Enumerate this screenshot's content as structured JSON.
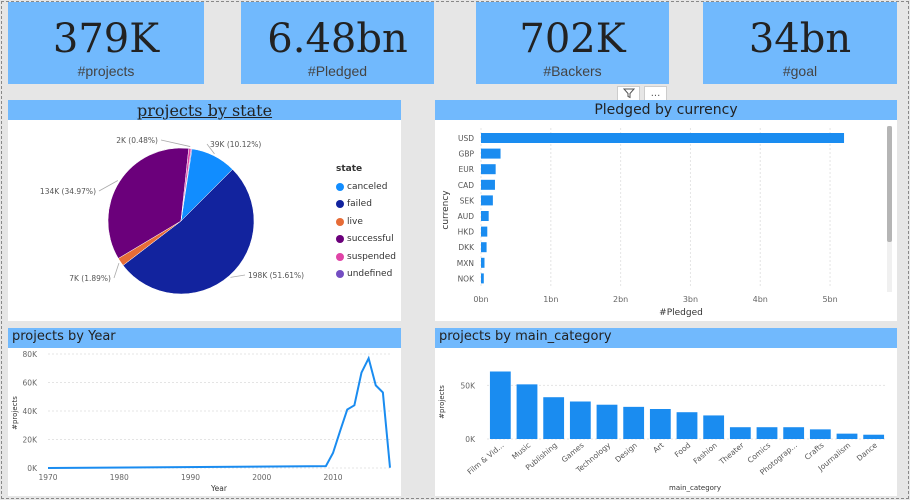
{
  "kpis": [
    {
      "value": "379K",
      "label": "#projects"
    },
    {
      "value": "6.48bn",
      "label": "#Pledged"
    },
    {
      "value": "702K",
      "label": "#Backers"
    },
    {
      "value": "34bn",
      "label": "#goal"
    }
  ],
  "toolbar": {
    "filter_icon": "filter-icon",
    "more_label": "..."
  },
  "colors": {
    "kpi_bg": "#71b9fd",
    "bar": "#1a8cf0",
    "canceled": "#118dff",
    "failed": "#12239e",
    "live": "#e66c37",
    "successful": "#6b007b",
    "suspended": "#e044a7",
    "undefined": "#744ec2"
  },
  "chart_data": [
    {
      "type": "pie",
      "title": "projects by state",
      "legend_title": "state",
      "legend_position": "right",
      "slices": [
        {
          "name": "canceled",
          "value": 39,
          "label": "39K (10.12%)"
        },
        {
          "name": "failed",
          "value": 198,
          "label": "198K (51.61%)"
        },
        {
          "name": "live",
          "value": 7,
          "label": "7K (1.89%)"
        },
        {
          "name": "successful",
          "value": 134,
          "label": "134K (34.97%)"
        },
        {
          "name": "suspended",
          "value": 2,
          "label": "2K (0.48%)"
        },
        {
          "name": "undefined",
          "value": 0.003,
          "label": ""
        }
      ]
    },
    {
      "type": "bar",
      "orientation": "horizontal",
      "title": "Pledged by currency",
      "xlabel": "#Pledged",
      "ylabel": "currency",
      "categories": [
        "USD",
        "GBP",
        "EUR",
        "CAD",
        "SEK",
        "AUD",
        "HKD",
        "DKK",
        "MXN",
        "NOK"
      ],
      "values": [
        5.2,
        0.28,
        0.21,
        0.2,
        0.17,
        0.11,
        0.09,
        0.08,
        0.05,
        0.04
      ],
      "xticks": [
        "0bn",
        "1bn",
        "2bn",
        "3bn",
        "4bn",
        "5bn"
      ],
      "xlim": [
        0,
        5.4
      ]
    },
    {
      "type": "line",
      "title": "projects by Year",
      "xlabel": "Year",
      "ylabel": "#projects",
      "x": [
        1970,
        2009,
        2010,
        2011,
        2012,
        2013,
        2014,
        2015,
        2016,
        2017,
        2018
      ],
      "y": [
        10,
        1300,
        10500,
        26000,
        41000,
        44000,
        67000,
        77000,
        58000,
        53000,
        200
      ],
      "xticks": [
        "1970",
        "1980",
        "1990",
        "2000",
        "2010"
      ],
      "yticks": [
        "0K",
        "20K",
        "40K",
        "60K",
        "80K"
      ],
      "xlim": [
        1970,
        2018
      ],
      "ylim": [
        0,
        80000
      ]
    },
    {
      "type": "bar",
      "title": "projects by main_category",
      "xlabel": "main_category",
      "ylabel": "#projects",
      "categories": [
        "Film & Vid...",
        "Music",
        "Publishing",
        "Games",
        "Technology",
        "Design",
        "Art",
        "Food",
        "Fashion",
        "Theater",
        "Comics",
        "Photograp...",
        "Crafts",
        "Journalism",
        "Dance"
      ],
      "values": [
        63000,
        51000,
        39000,
        35000,
        32000,
        30000,
        28000,
        25000,
        22000,
        11000,
        11000,
        11000,
        9000,
        5000,
        4000
      ],
      "yticks": [
        "0K",
        "50K"
      ],
      "ylim": [
        0,
        70000
      ]
    }
  ]
}
